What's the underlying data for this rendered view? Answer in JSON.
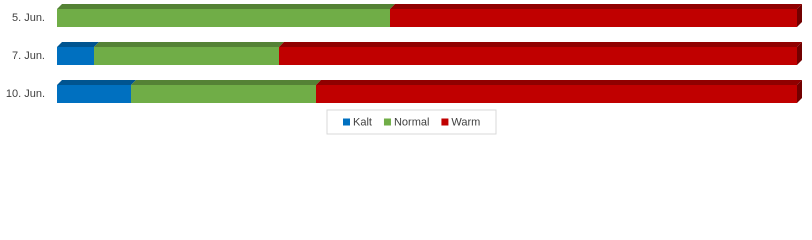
{
  "chart_data": {
    "type": "stacked-bar-3d",
    "categories": [
      "5. Jun.",
      "7. Jun.",
      "10. Jun."
    ],
    "series": [
      {
        "name": "Kalt",
        "color": "#0070c0",
        "values": [
          0,
          5,
          10
        ]
      },
      {
        "name": "Normal",
        "color": "#70ad47",
        "values": [
          45,
          25,
          25
        ]
      },
      {
        "name": "Warm",
        "color": "#c00000",
        "values": [
          55,
          70,
          65
        ]
      }
    ],
    "xlim": [
      0,
      100
    ],
    "legend": "bottom"
  }
}
